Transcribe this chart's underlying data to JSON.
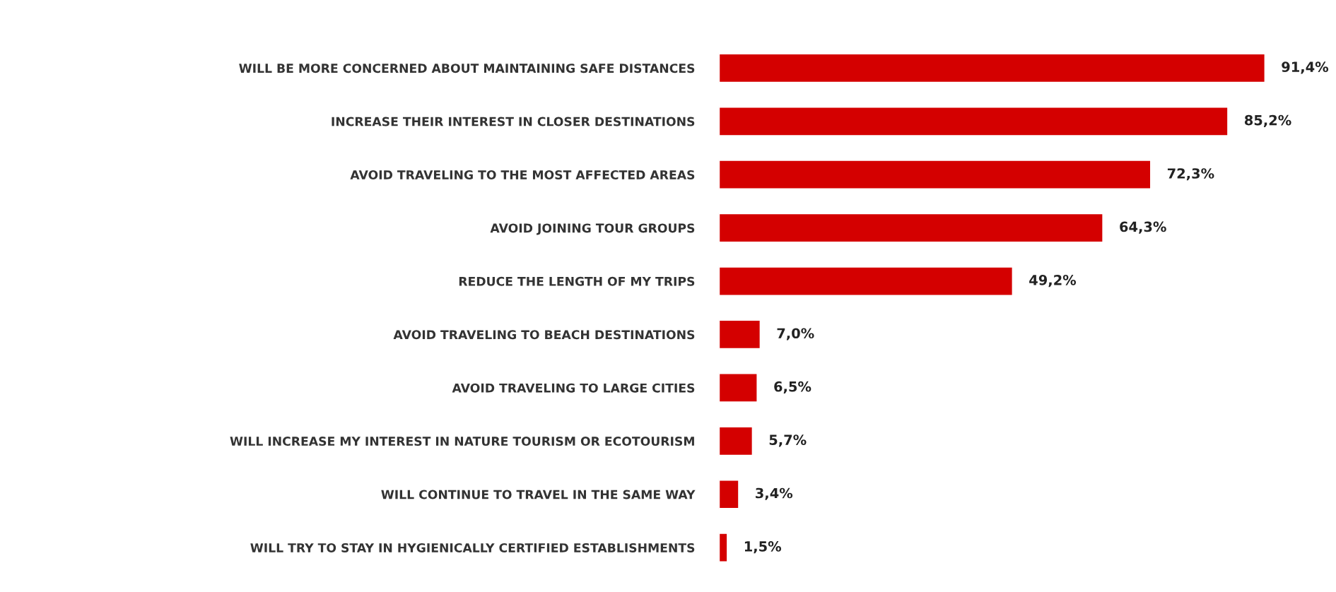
{
  "chart_data": {
    "type": "bar",
    "orientation": "horizontal",
    "categories": [
      "WILL BE MORE CONCERNED ABOUT MAINTAINING SAFE DISTANCES",
      "INCREASE THEIR INTEREST IN CLOSER DESTINATIONS",
      "AVOID TRAVELING TO THE MOST AFFECTED AREAS",
      "AVOID JOINING TOUR GROUPS",
      "REDUCE THE LENGTH OF MY TRIPS",
      "AVOID TRAVELING TO BEACH DESTINATIONS",
      "AVOID TRAVELING TO LARGE CITIES",
      "WILL INCREASE MY INTEREST IN NATURE TOURISM OR ECOTOURISM",
      "WILL CONTINUE TO TRAVEL IN THE SAME WAY",
      "WILL TRY TO STAY IN HYGIENICALLY CERTIFIED ESTABLISHMENTS"
    ],
    "values": [
      91.4,
      85.2,
      72.3,
      64.3,
      49.2,
      7.0,
      6.5,
      5.7,
      3.4,
      1.5
    ],
    "value_labels": [
      "91,4%",
      "85,2%",
      "72,3%",
      "64,3%",
      "49,2%",
      "7,0%",
      "6,5%",
      "5,7%",
      "3,4%",
      "1,5%"
    ],
    "color": "#d40000",
    "grid": false,
    "legend": false
  }
}
